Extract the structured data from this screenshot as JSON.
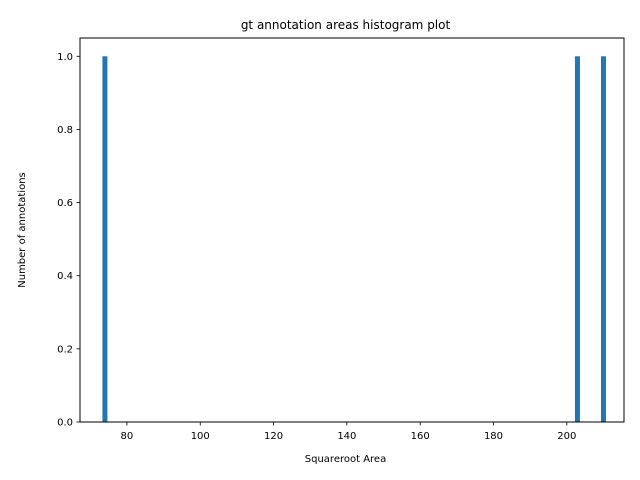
{
  "chart_data": {
    "type": "bar",
    "title": "gt annotation areas histogram plot",
    "xlabel": "Squareroot Area",
    "ylabel": "Number of annotations",
    "xlim": [
      67.2,
      215.6
    ],
    "ylim": [
      0,
      1.05
    ],
    "xticks": [
      80,
      100,
      120,
      140,
      160,
      180,
      200
    ],
    "yticks": [
      0.0,
      0.2,
      0.4,
      0.6,
      0.8,
      1.0
    ],
    "xtick_labels": [
      "80",
      "100",
      "120",
      "140",
      "160",
      "180",
      "200"
    ],
    "ytick_labels": [
      "0.0",
      "0.2",
      "0.4",
      "0.6",
      "0.8",
      "1.0"
    ],
    "bar_width": 1.36,
    "bars": [
      {
        "x": 74.0,
        "value": 1
      },
      {
        "x": 202.9,
        "value": 1
      },
      {
        "x": 210.0,
        "value": 1
      }
    ],
    "grid": false,
    "colors": {
      "bar": "#1f77b4",
      "axis": "#000000"
    }
  }
}
